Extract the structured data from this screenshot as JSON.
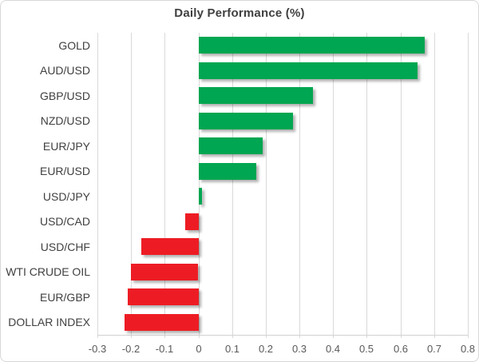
{
  "chart_data": {
    "type": "bar",
    "orientation": "horizontal",
    "title": "Daily Performance (%)",
    "categories": [
      "GOLD",
      "AUD/USD",
      "GBP/USD",
      "NZD/USD",
      "EUR/JPY",
      "EUR/USD",
      "USD/JPY",
      "USD/CAD",
      "USD/CHF",
      "WTI CRUDE OIL",
      "EUR/GBP",
      "DOLLAR INDEX"
    ],
    "values": [
      0.67,
      0.65,
      0.34,
      0.28,
      0.19,
      0.17,
      0.01,
      -0.04,
      -0.17,
      -0.2,
      -0.21,
      -0.22
    ],
    "xlim": [
      -0.3,
      0.8
    ],
    "x_ticks": [
      "-0.3",
      "-0.2",
      "-0.1",
      "0",
      "0.1",
      "0.2",
      "0.3",
      "0.4",
      "0.5",
      "0.6",
      "0.7",
      "0.8"
    ],
    "x_tick_values": [
      -0.3,
      -0.2,
      -0.1,
      0,
      0.1,
      0.2,
      0.3,
      0.4,
      0.5,
      0.6,
      0.7,
      0.8
    ],
    "grid": true,
    "legend": "none",
    "colors": {
      "positive": "#00a651",
      "negative": "#ed1c24",
      "gridline": "#d9d9d9",
      "axis_line": "#d2d2d2",
      "tick_label": "#595959",
      "category_label": "#404040",
      "title": "#404040",
      "background": "#ffffff",
      "border": "#d8d8d8"
    }
  }
}
